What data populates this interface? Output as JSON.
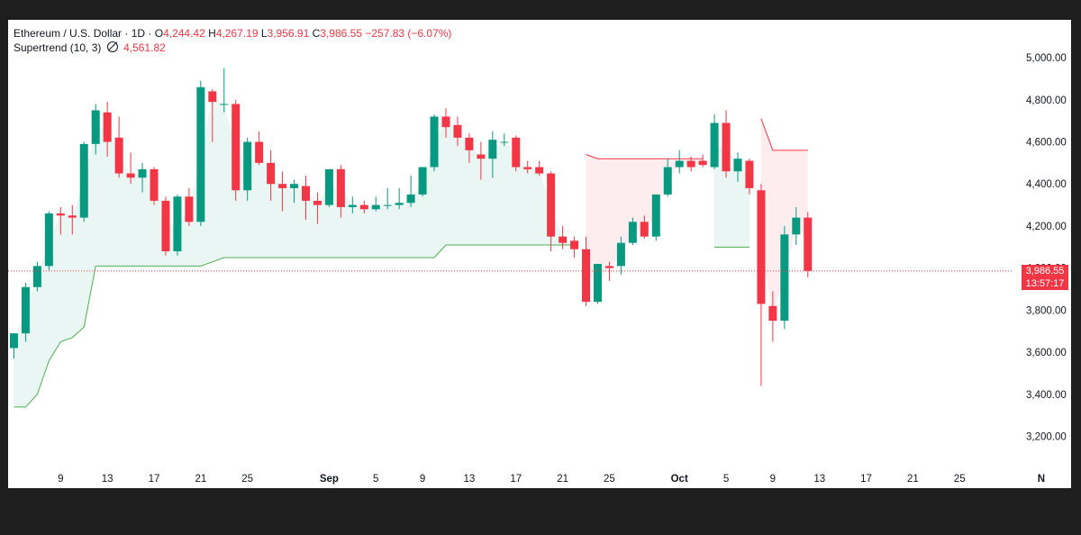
{
  "legend": {
    "symbol": "Ethereum / U.S. Dollar · 1D ·",
    "open_key": "O",
    "open": "4,244.42",
    "high_key": "H",
    "high": "4,267.19",
    "low_key": "L",
    "low": "3,956.91",
    "close_key": "C",
    "close": "3,986.55",
    "change": "−257.83 (−6.07%)",
    "indicator": "Supertrend (10, 3)",
    "indicator_icon": "eye-off-icon",
    "indicator_value": "4,561.82"
  },
  "price_badge": {
    "price": "3,986.55",
    "countdown": "13:57:17"
  },
  "colors": {
    "up": "#089981",
    "down": "#f23645",
    "trend_up_fill": "rgba(8,153,129,0.09)",
    "trend_down_fill": "rgba(242,54,69,0.09)",
    "trend_up_line": "#4caf50",
    "trend_down_line": "#f23645"
  },
  "chart_data": {
    "type": "candlestick",
    "y_ticks": [
      3200,
      3400,
      3600,
      3800,
      4000,
      4200,
      4400,
      4600,
      4800,
      5000
    ],
    "y_tick_labels": [
      "3,200.00",
      "3,400.00",
      "3,600.00",
      "3,800.00",
      "4,000.00",
      "4,200.00",
      "4,400.00",
      "4,600.00",
      "4,800.00",
      "5,000.00"
    ],
    "ylim": [
      3040,
      5180
    ],
    "x_ticks": [
      {
        "day": 9,
        "label": "9"
      },
      {
        "day": 13,
        "label": "13"
      },
      {
        "day": 17,
        "label": "17"
      },
      {
        "day": 21,
        "label": "21"
      },
      {
        "day": 25,
        "label": "25"
      },
      {
        "day": 32,
        "label": "Sep",
        "major": true
      },
      {
        "day": 36,
        "label": "5"
      },
      {
        "day": 40,
        "label": "9"
      },
      {
        "day": 44,
        "label": "13"
      },
      {
        "day": 48,
        "label": "17"
      },
      {
        "day": 52,
        "label": "21"
      },
      {
        "day": 56,
        "label": "25"
      },
      {
        "day": 62,
        "label": "Oct",
        "major": true
      },
      {
        "day": 66,
        "label": "5"
      },
      {
        "day": 70,
        "label": "9"
      },
      {
        "day": 74,
        "label": "13"
      },
      {
        "day": 78,
        "label": "17"
      },
      {
        "day": 82,
        "label": "21"
      },
      {
        "day": 86,
        "label": "25"
      },
      {
        "day": 93,
        "label": "N",
        "major": true
      }
    ],
    "candles": [
      [
        5,
        3620,
        3690,
        3570,
        3690
      ],
      [
        6,
        3690,
        3930,
        3650,
        3910
      ],
      [
        7,
        3910,
        4030,
        3890,
        4010
      ],
      [
        8,
        4010,
        4270,
        3990,
        4260
      ],
      [
        9,
        4260,
        4290,
        4160,
        4250
      ],
      [
        10,
        4250,
        4300,
        4160,
        4240
      ],
      [
        11,
        4240,
        4600,
        4220,
        4590
      ],
      [
        12,
        4590,
        4780,
        4540,
        4750
      ],
      [
        13,
        4740,
        4790,
        4530,
        4600
      ],
      [
        14,
        4620,
        4720,
        4430,
        4450
      ],
      [
        15,
        4450,
        4550,
        4400,
        4430
      ],
      [
        16,
        4430,
        4500,
        4360,
        4470
      ],
      [
        17,
        4470,
        4480,
        4300,
        4320
      ],
      [
        18,
        4320,
        4340,
        4060,
        4080
      ],
      [
        19,
        4080,
        4350,
        4060,
        4340
      ],
      [
        20,
        4340,
        4380,
        4200,
        4220
      ],
      [
        21,
        4220,
        4890,
        4200,
        4860
      ],
      [
        22,
        4840,
        4850,
        4600,
        4790
      ],
      [
        23,
        4780,
        4950,
        4740,
        4780
      ],
      [
        24,
        4780,
        4800,
        4320,
        4370
      ],
      [
        25,
        4370,
        4620,
        4320,
        4600
      ],
      [
        26,
        4600,
        4650,
        4490,
        4500
      ],
      [
        27,
        4500,
        4560,
        4320,
        4400
      ],
      [
        28,
        4400,
        4460,
        4270,
        4380
      ],
      [
        29,
        4380,
        4420,
        4310,
        4400
      ],
      [
        30,
        4390,
        4440,
        4230,
        4320
      ],
      [
        31,
        4320,
        4360,
        4210,
        4300
      ],
      [
        32,
        4300,
        4470,
        4290,
        4470
      ],
      [
        33,
        4470,
        4490,
        4240,
        4290
      ],
      [
        34,
        4290,
        4340,
        4260,
        4300
      ],
      [
        35,
        4300,
        4320,
        4260,
        4280
      ],
      [
        36,
        4280,
        4340,
        4270,
        4300
      ],
      [
        37,
        4300,
        4380,
        4280,
        4300
      ],
      [
        38,
        4300,
        4380,
        4280,
        4310
      ],
      [
        39,
        4310,
        4440,
        4290,
        4350
      ],
      [
        40,
        4350,
        4480,
        4340,
        4480
      ],
      [
        41,
        4480,
        4730,
        4460,
        4720
      ],
      [
        42,
        4720,
        4760,
        4620,
        4670
      ],
      [
        43,
        4680,
        4720,
        4580,
        4620
      ],
      [
        44,
        4620,
        4640,
        4500,
        4560
      ],
      [
        45,
        4540,
        4600,
        4420,
        4520
      ],
      [
        46,
        4520,
        4650,
        4430,
        4610
      ],
      [
        47,
        4600,
        4640,
        4580,
        4600
      ],
      [
        48,
        4620,
        4630,
        4460,
        4480
      ],
      [
        49,
        4480,
        4510,
        4450,
        4470
      ],
      [
        50,
        4480,
        4510,
        4440,
        4450
      ],
      [
        51,
        4450,
        4460,
        4080,
        4150
      ],
      [
        52,
        4150,
        4200,
        4090,
        4120
      ],
      [
        53,
        4130,
        4150,
        4050,
        4090
      ],
      [
        54,
        4090,
        4150,
        3820,
        3840
      ],
      [
        55,
        3840,
        4020,
        3830,
        4020
      ],
      [
        56,
        4010,
        4030,
        3940,
        4000
      ],
      [
        57,
        4010,
        4150,
        3970,
        4120
      ],
      [
        58,
        4120,
        4240,
        4110,
        4220
      ],
      [
        59,
        4220,
        4250,
        4140,
        4150
      ],
      [
        60,
        4150,
        4350,
        4130,
        4350
      ],
      [
        61,
        4350,
        4520,
        4340,
        4480
      ],
      [
        62,
        4480,
        4560,
        4450,
        4510
      ],
      [
        63,
        4510,
        4530,
        4460,
        4480
      ],
      [
        64,
        4510,
        4540,
        4480,
        4490
      ],
      [
        65,
        4480,
        4730,
        4470,
        4690
      ],
      [
        66,
        4690,
        4750,
        4430,
        4460
      ],
      [
        67,
        4460,
        4550,
        4410,
        4520
      ],
      [
        68,
        4510,
        4520,
        4350,
        4380
      ],
      [
        69,
        4370,
        4400,
        3440,
        3830
      ],
      [
        70,
        3820,
        3890,
        3650,
        3750
      ],
      [
        71,
        3750,
        4200,
        3710,
        4160
      ],
      [
        72,
        4160,
        4290,
        4110,
        4240
      ],
      [
        73,
        4240,
        4267,
        3957,
        3987
      ]
    ],
    "supertrend_up": [
      [
        5,
        3340
      ],
      [
        6,
        3340
      ],
      [
        7,
        3400
      ],
      [
        8,
        3560
      ],
      [
        9,
        3650
      ],
      [
        10,
        3670
      ],
      [
        11,
        3720
      ],
      [
        12,
        4010
      ],
      [
        13,
        4010
      ],
      [
        14,
        4010
      ],
      [
        15,
        4010
      ],
      [
        16,
        4010
      ],
      [
        17,
        4010
      ],
      [
        18,
        4010
      ],
      [
        19,
        4010
      ],
      [
        20,
        4010
      ],
      [
        21,
        4010
      ],
      [
        22,
        4030
      ],
      [
        23,
        4050
      ],
      [
        24,
        4050
      ],
      [
        25,
        4050
      ],
      [
        26,
        4050
      ],
      [
        27,
        4050
      ],
      [
        28,
        4050
      ],
      [
        29,
        4050
      ],
      [
        30,
        4050
      ],
      [
        31,
        4050
      ],
      [
        32,
        4050
      ],
      [
        33,
        4050
      ],
      [
        34,
        4050
      ],
      [
        35,
        4050
      ],
      [
        36,
        4050
      ],
      [
        37,
        4050
      ],
      [
        38,
        4050
      ],
      [
        39,
        4050
      ],
      [
        40,
        4050
      ],
      [
        41,
        4050
      ],
      [
        42,
        4110
      ],
      [
        43,
        4110
      ],
      [
        44,
        4110
      ],
      [
        45,
        4110
      ],
      [
        46,
        4110
      ],
      [
        47,
        4110
      ],
      [
        48,
        4110
      ],
      [
        49,
        4110
      ],
      [
        50,
        4110
      ],
      [
        51,
        4110
      ],
      [
        52,
        4110
      ],
      [
        53,
        4110
      ]
    ],
    "supertrend_down": [
      [
        54,
        4540
      ],
      [
        55,
        4520
      ],
      [
        56,
        4520
      ],
      [
        57,
        4520
      ],
      [
        58,
        4520
      ],
      [
        59,
        4520
      ],
      [
        60,
        4520
      ],
      [
        61,
        4520
      ],
      [
        62,
        4520
      ],
      [
        63,
        4520
      ],
      [
        64,
        4520
      ]
    ],
    "supertrend_up2": [
      [
        65,
        4100
      ],
      [
        66,
        4100
      ],
      [
        67,
        4100
      ],
      [
        68,
        4100
      ]
    ],
    "supertrend_down2": [
      [
        69,
        4710
      ],
      [
        70,
        4560
      ],
      [
        71,
        4560
      ],
      [
        72,
        4560
      ],
      [
        73,
        4560
      ]
    ],
    "last_price": 3986.55
  }
}
